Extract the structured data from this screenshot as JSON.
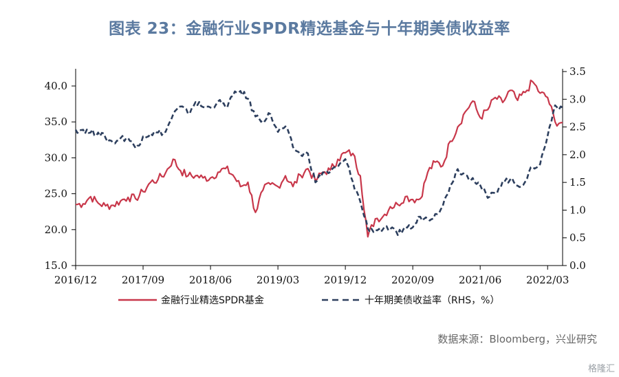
{
  "title": "图表 23：金融行业SPDR精选基金与十年期美债收益率",
  "source": "数据来源：Bloomberg，兴业研究",
  "watermark": "格隆汇",
  "colors": {
    "series1": "#c8374a",
    "series2": "#2d3f5e",
    "axis": "#000000",
    "title": "#5b7aa0"
  },
  "chart_data": {
    "type": "line",
    "title": "图表 23：金融行业SPDR精选基金与十年期美债收益率",
    "x_range": [
      "2016-12",
      "2022-05"
    ],
    "xticks": [
      "2016/12",
      "2017/09",
      "2018/06",
      "2019/03",
      "2019/12",
      "2020/09",
      "2021/06",
      "2022/03"
    ],
    "y_left": {
      "ticks": [
        "15.0",
        "20.0",
        "25.0",
        "30.0",
        "35.0",
        "40.0"
      ],
      "range": [
        15,
        40
      ]
    },
    "y_right": {
      "ticks": [
        "0.0",
        "0.5",
        "1.0",
        "1.5",
        "2.0",
        "2.5",
        "3.0",
        "3.5"
      ],
      "range": [
        0,
        3.5
      ]
    },
    "grid": false,
    "legend_position": "bottom",
    "series": [
      {
        "name": "金融行业精选SPDR基金",
        "axis": "left",
        "style": "solid",
        "points": [
          [
            "2016-12",
            23.5
          ],
          [
            "2017-01",
            23.6
          ],
          [
            "2017-02",
            24.6
          ],
          [
            "2017-03",
            23.7
          ],
          [
            "2017-04",
            23.3
          ],
          [
            "2017-05",
            23.4
          ],
          [
            "2017-06",
            24.0
          ],
          [
            "2017-07",
            24.5
          ],
          [
            "2017-08",
            24.3
          ],
          [
            "2017-09",
            25.3
          ],
          [
            "2017-10",
            26.6
          ],
          [
            "2017-11",
            27.0
          ],
          [
            "2017-12",
            27.9
          ],
          [
            "2018-01",
            29.8
          ],
          [
            "2018-02",
            28.2
          ],
          [
            "2018-03",
            27.5
          ],
          [
            "2018-04",
            27.5
          ],
          [
            "2018-05",
            27.2
          ],
          [
            "2018-06",
            27.2
          ],
          [
            "2018-07",
            28.0
          ],
          [
            "2018-08",
            28.5
          ],
          [
            "2018-09",
            27.6
          ],
          [
            "2018-10",
            26.0
          ],
          [
            "2018-11",
            26.6
          ],
          [
            "2018-12",
            22.4
          ],
          [
            "2019-01",
            25.5
          ],
          [
            "2019-02",
            26.3
          ],
          [
            "2019-03",
            26.0
          ],
          [
            "2019-04",
            27.5
          ],
          [
            "2019-05",
            26.0
          ],
          [
            "2019-06",
            27.6
          ],
          [
            "2019-07",
            28.5
          ],
          [
            "2019-08",
            26.8
          ],
          [
            "2019-09",
            28.0
          ],
          [
            "2019-10",
            28.3
          ],
          [
            "2019-11",
            29.8
          ],
          [
            "2019-12",
            30.7
          ],
          [
            "2020-01",
            30.6
          ],
          [
            "2020-02",
            27.5
          ],
          [
            "2020-03",
            19.0
          ],
          [
            "2020-04",
            21.5
          ],
          [
            "2020-05",
            21.8
          ],
          [
            "2020-06",
            23.2
          ],
          [
            "2020-07",
            23.5
          ],
          [
            "2020-08",
            24.6
          ],
          [
            "2020-09",
            24.2
          ],
          [
            "2020-10",
            24.3
          ],
          [
            "2020-11",
            28.0
          ],
          [
            "2020-12",
            29.4
          ],
          [
            "2021-01",
            28.9
          ],
          [
            "2021-02",
            32.3
          ],
          [
            "2021-03",
            34.3
          ],
          [
            "2021-04",
            36.4
          ],
          [
            "2021-05",
            37.9
          ],
          [
            "2021-06",
            35.6
          ],
          [
            "2021-07",
            36.7
          ],
          [
            "2021-08",
            38.4
          ],
          [
            "2021-09",
            37.7
          ],
          [
            "2021-10",
            39.4
          ],
          [
            "2021-11",
            38.0
          ],
          [
            "2021-12",
            39.1
          ],
          [
            "2022-01",
            40.6
          ],
          [
            "2022-02",
            39.0
          ],
          [
            "2022-03",
            38.4
          ],
          [
            "2022-04",
            35.0
          ],
          [
            "2022-05",
            34.9
          ]
        ]
      },
      {
        "name": "十年期美债收益率（RHS，%）",
        "axis": "right",
        "style": "dashed",
        "points": [
          [
            "2016-12",
            2.45
          ],
          [
            "2017-01",
            2.45
          ],
          [
            "2017-02",
            2.4
          ],
          [
            "2017-03",
            2.4
          ],
          [
            "2017-04",
            2.3
          ],
          [
            "2017-05",
            2.22
          ],
          [
            "2017-06",
            2.3
          ],
          [
            "2017-07",
            2.3
          ],
          [
            "2017-08",
            2.12
          ],
          [
            "2017-09",
            2.33
          ],
          [
            "2017-10",
            2.38
          ],
          [
            "2017-11",
            2.4
          ],
          [
            "2017-12",
            2.41
          ],
          [
            "2018-01",
            2.72
          ],
          [
            "2018-02",
            2.87
          ],
          [
            "2018-03",
            2.74
          ],
          [
            "2018-04",
            2.95
          ],
          [
            "2018-05",
            2.86
          ],
          [
            "2018-06",
            2.85
          ],
          [
            "2018-07",
            2.96
          ],
          [
            "2018-08",
            2.86
          ],
          [
            "2018-09",
            3.06
          ],
          [
            "2018-10",
            3.15
          ],
          [
            "2018-11",
            3.01
          ],
          [
            "2018-12",
            2.69
          ],
          [
            "2019-01",
            2.63
          ],
          [
            "2019-02",
            2.73
          ],
          [
            "2019-03",
            2.41
          ],
          [
            "2019-04",
            2.51
          ],
          [
            "2019-05",
            2.14
          ],
          [
            "2019-06",
            2.0
          ],
          [
            "2019-07",
            2.02
          ],
          [
            "2019-08",
            1.5
          ],
          [
            "2019-09",
            1.68
          ],
          [
            "2019-10",
            1.69
          ],
          [
            "2019-11",
            1.78
          ],
          [
            "2019-12",
            1.92
          ],
          [
            "2020-01",
            1.51
          ],
          [
            "2020-02",
            1.15
          ],
          [
            "2020-03",
            0.67
          ],
          [
            "2020-04",
            0.64
          ],
          [
            "2020-05",
            0.65
          ],
          [
            "2020-06",
            0.66
          ],
          [
            "2020-07",
            0.55
          ],
          [
            "2020-08",
            0.7
          ],
          [
            "2020-09",
            0.69
          ],
          [
            "2020-10",
            0.88
          ],
          [
            "2020-11",
            0.84
          ],
          [
            "2020-12",
            0.93
          ],
          [
            "2021-01",
            1.07
          ],
          [
            "2021-02",
            1.44
          ],
          [
            "2021-03",
            1.74
          ],
          [
            "2021-04",
            1.63
          ],
          [
            "2021-05",
            1.58
          ],
          [
            "2021-06",
            1.45
          ],
          [
            "2021-07",
            1.22
          ],
          [
            "2021-08",
            1.31
          ],
          [
            "2021-09",
            1.52
          ],
          [
            "2021-10",
            1.55
          ],
          [
            "2021-11",
            1.44
          ],
          [
            "2021-12",
            1.51
          ],
          [
            "2022-01",
            1.78
          ],
          [
            "2022-02",
            1.83
          ],
          [
            "2022-03",
            2.34
          ],
          [
            "2022-04",
            2.89
          ],
          [
            "2022-05",
            2.85
          ]
        ]
      }
    ]
  }
}
